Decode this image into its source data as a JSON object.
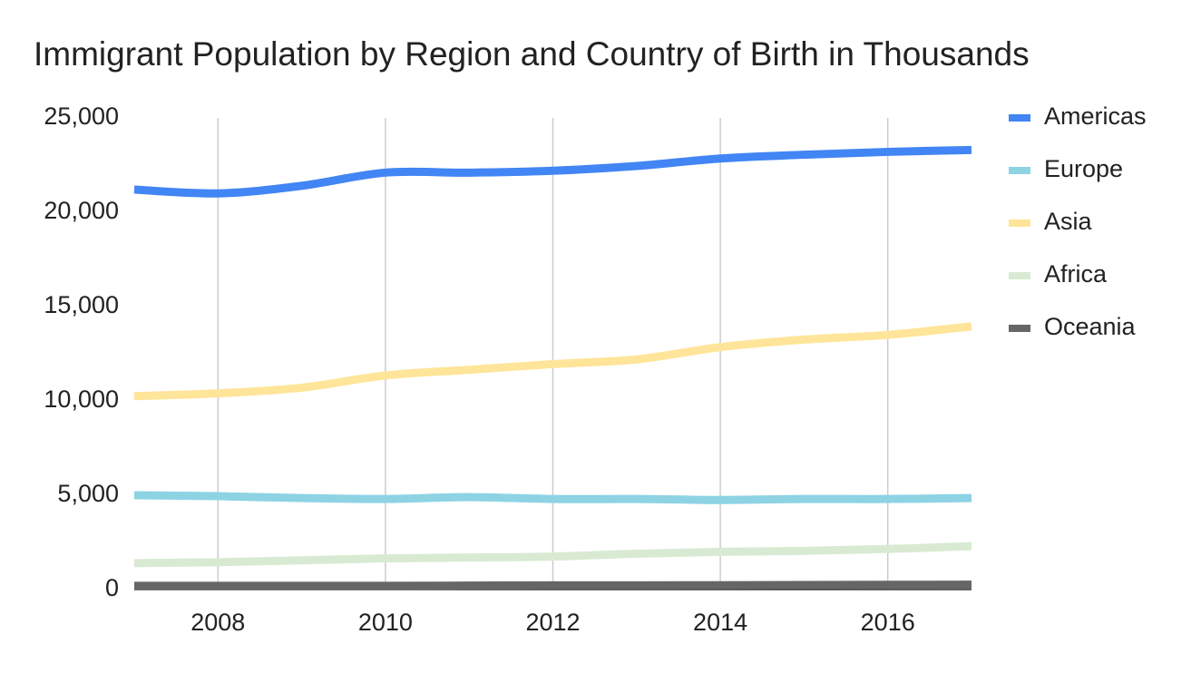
{
  "chart_data": {
    "type": "line",
    "title": "Immigrant Population by Region and Country of Birth in Thousands",
    "x": [
      2007,
      2008,
      2009,
      2010,
      2011,
      2012,
      2013,
      2014,
      2015,
      2016,
      2017
    ],
    "xlim": [
      2007,
      2017
    ],
    "xticks": [
      2008,
      2010,
      2012,
      2014,
      2016
    ],
    "ylim": [
      0,
      25000
    ],
    "yticks": [
      0,
      {
        "value": 5000,
        "label": "5,000"
      },
      {
        "value": 10000,
        "label": "10,000"
      },
      {
        "value": 15000,
        "label": "15,000"
      },
      {
        "value": 20000,
        "label": "20,000"
      },
      {
        "value": 25000,
        "label": "25,000"
      }
    ],
    "grid": "x",
    "legend": "right",
    "series": [
      {
        "name": "Americas",
        "color": "#4285f4",
        "values": [
          21200,
          21000,
          21400,
          22100,
          22100,
          22200,
          22450,
          22850,
          23050,
          23200,
          23300
        ]
      },
      {
        "name": "Europe",
        "color": "#8dd3e4",
        "values": [
          5000,
          4950,
          4850,
          4800,
          4900,
          4800,
          4800,
          4750,
          4800,
          4800,
          4850
        ]
      },
      {
        "name": "Asia",
        "color": "#ffe599",
        "values": [
          10250,
          10400,
          10700,
          11350,
          11650,
          11950,
          12200,
          12850,
          13250,
          13500,
          13950
        ]
      },
      {
        "name": "Africa",
        "color": "#d9ead3",
        "values": [
          1400,
          1450,
          1550,
          1650,
          1700,
          1750,
          1900,
          2000,
          2050,
          2150,
          2300
        ]
      },
      {
        "name": "Oceania",
        "color": "#666666",
        "values": [
          200,
          200,
          200,
          200,
          210,
          220,
          220,
          230,
          240,
          250,
          260
        ]
      }
    ]
  }
}
